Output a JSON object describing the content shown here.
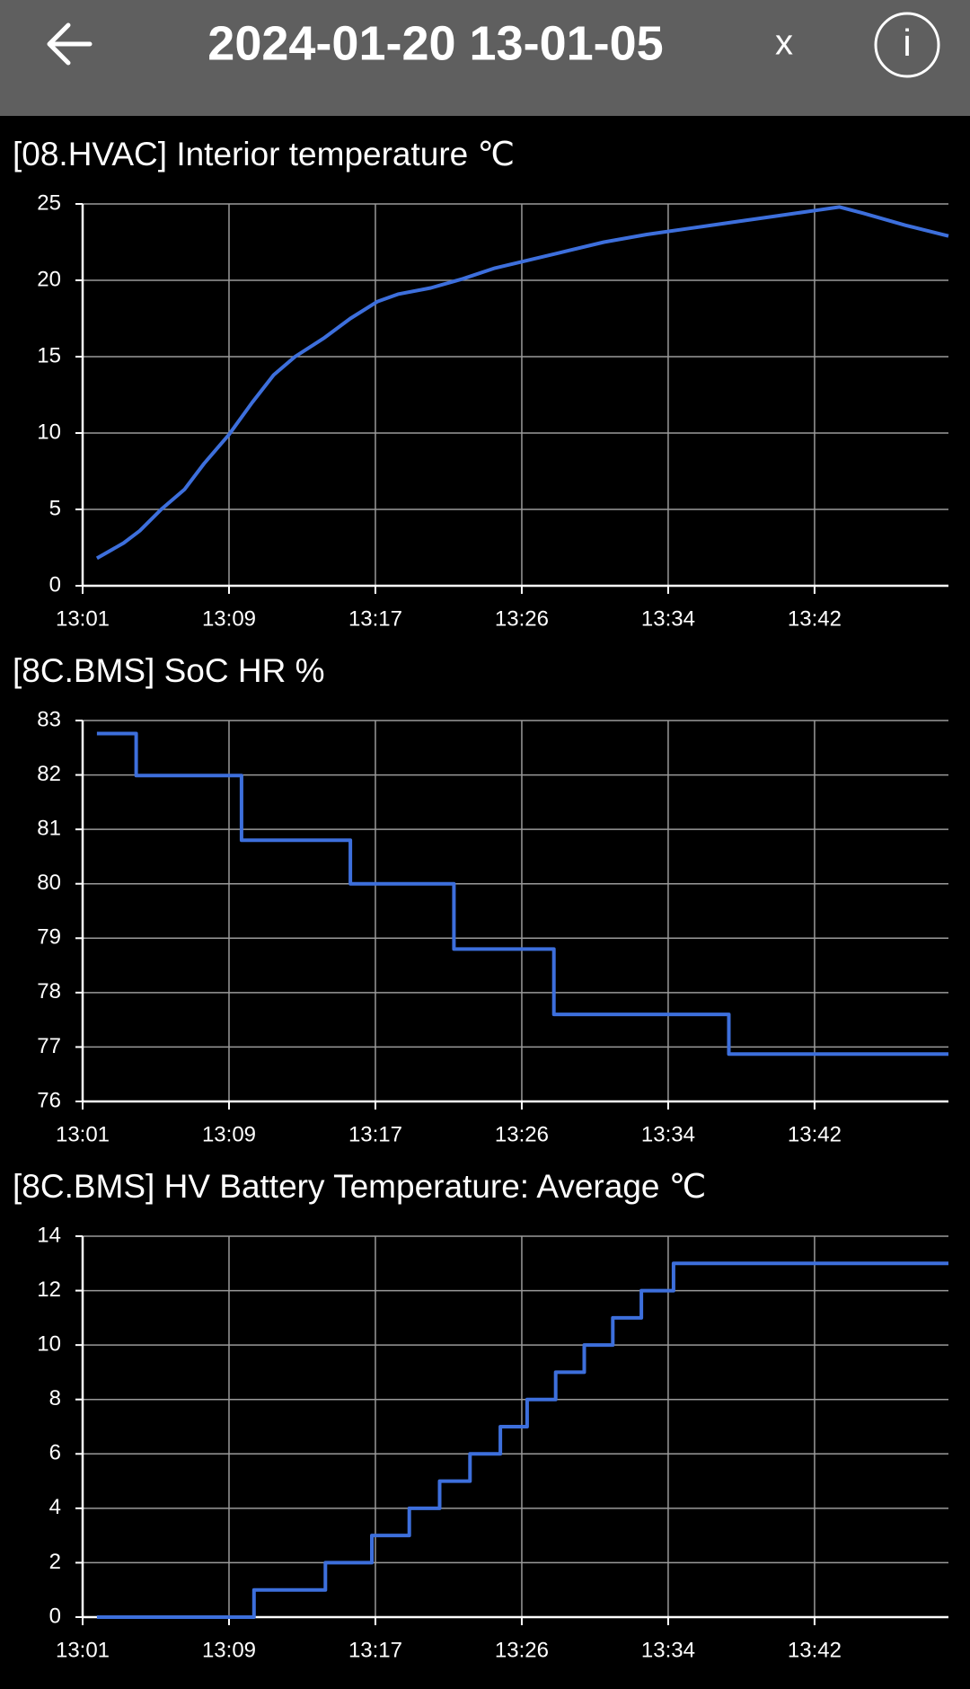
{
  "header": {
    "title": "2024-01-20 13-01-05",
    "close": "x",
    "info": "i"
  },
  "chart_data": [
    {
      "type": "line",
      "title": "[08.HVAC] Interior temperature  ℃",
      "color": "#3d6fdc",
      "grid": true,
      "x": [
        1.8,
        3.3,
        4.2,
        5.4,
        6.7,
        7.8,
        9.2,
        10.5,
        11.7,
        12.9,
        14.5,
        16.0,
        17.5,
        18.7,
        20.5,
        22.3,
        24.1,
        25.9,
        27.7,
        30.2,
        32.6,
        35.0,
        37.4,
        39.8,
        42.2,
        43.4,
        44.7,
        47.1,
        49.5
      ],
      "values": [
        1.8,
        2.8,
        3.6,
        5.0,
        6.3,
        8.0,
        9.9,
        12.0,
        13.8,
        15.0,
        16.2,
        17.5,
        18.6,
        19.1,
        19.5,
        20.1,
        20.8,
        21.3,
        21.8,
        22.5,
        23.0,
        23.4,
        23.8,
        24.2,
        24.6,
        24.8,
        24.4,
        23.6,
        22.9
      ],
      "xlim": [
        1,
        49.5
      ],
      "xticks": [
        {
          "value": 1,
          "label": "13:01"
        },
        {
          "value": 9.2,
          "label": "13:09"
        },
        {
          "value": 17.4,
          "label": "13:17"
        },
        {
          "value": 25.6,
          "label": "13:26"
        },
        {
          "value": 33.8,
          "label": "13:34"
        },
        {
          "value": 42,
          "label": "13:42"
        }
      ],
      "ylim": [
        0,
        25
      ],
      "yticks": [
        0,
        5,
        10,
        15,
        20,
        25
      ]
    },
    {
      "type": "line",
      "title": "[8C.BMS] SoC HR  %",
      "color": "#3d6fdc",
      "grid": true,
      "x": [
        1.8,
        4.0,
        4.0,
        9.9,
        9.9,
        16.0,
        16.0,
        21.8,
        21.8,
        27.4,
        27.4,
        37.2,
        37.2,
        49.5
      ],
      "values": [
        82.76,
        82.76,
        81.99,
        81.99,
        80.8,
        80.8,
        80.0,
        80.0,
        78.8,
        78.8,
        77.6,
        77.6,
        76.87,
        76.87
      ],
      "xlim": [
        1,
        49.5
      ],
      "xticks": [
        {
          "value": 1,
          "label": "13:01"
        },
        {
          "value": 9.2,
          "label": "13:09"
        },
        {
          "value": 17.4,
          "label": "13:17"
        },
        {
          "value": 25.6,
          "label": "13:26"
        },
        {
          "value": 33.8,
          "label": "13:34"
        },
        {
          "value": 42,
          "label": "13:42"
        }
      ],
      "ylim": [
        76,
        83
      ],
      "yticks": [
        76,
        77,
        78,
        79,
        80,
        81,
        82,
        83
      ]
    },
    {
      "type": "line",
      "title": "[8C.BMS] HV Battery Temperature: Average  ℃",
      "color": "#3d6fdc",
      "grid": true,
      "x": [
        1.8,
        10.6,
        10.6,
        14.6,
        14.6,
        17.2,
        17.2,
        19.3,
        19.3,
        21.0,
        21.0,
        22.7,
        22.7,
        24.4,
        24.4,
        25.9,
        25.9,
        27.5,
        27.5,
        29.1,
        29.1,
        30.7,
        30.7,
        32.3,
        32.3,
        34.1,
        34.1,
        49.5
      ],
      "values": [
        0,
        0,
        1,
        1,
        2,
        2,
        3,
        3,
        4,
        4,
        5,
        5,
        6,
        6,
        7,
        7,
        8,
        8,
        9,
        9,
        10,
        10,
        11,
        11,
        12,
        12,
        13,
        13
      ],
      "xlim": [
        1,
        49.5
      ],
      "xticks": [
        {
          "value": 1,
          "label": "13:01"
        },
        {
          "value": 9.2,
          "label": "13:09"
        },
        {
          "value": 17.4,
          "label": "13:17"
        },
        {
          "value": 25.6,
          "label": "13:26"
        },
        {
          "value": 33.8,
          "label": "13:34"
        },
        {
          "value": 42,
          "label": "13:42"
        }
      ],
      "ylim": [
        0,
        14
      ],
      "yticks": [
        0,
        2,
        4,
        6,
        8,
        10,
        12,
        14
      ]
    }
  ]
}
